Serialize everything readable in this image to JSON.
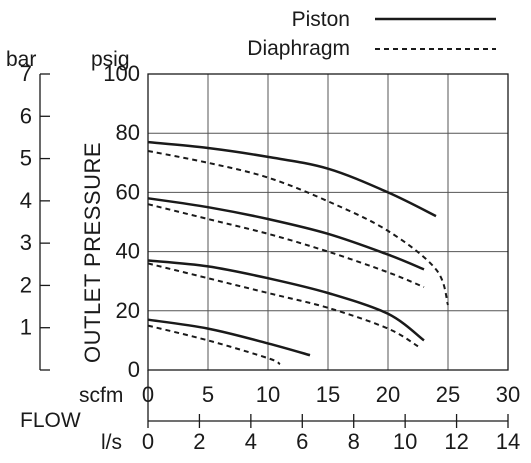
{
  "chart_data": {
    "type": "line",
    "title": "",
    "legend": {
      "placement": "top-right",
      "entries": [
        {
          "name": "Piston",
          "style": "solid"
        },
        {
          "name": "Diaphragm",
          "style": "dashed"
        }
      ]
    },
    "ylabel": "OUTLET PRESSURE",
    "xlabel": "FLOW",
    "grid": true,
    "y_axes": {
      "psig": {
        "unit": "psig",
        "range": [
          0,
          100
        ],
        "ticks": [
          "0",
          "20",
          "40",
          "60",
          "80",
          "100"
        ]
      },
      "bar": {
        "unit": "bar",
        "range": [
          0,
          7
        ],
        "ticks": [
          "1",
          "2",
          "3",
          "4",
          "5",
          "6",
          "7"
        ]
      }
    },
    "x_axes": {
      "scfm": {
        "unit": "scfm",
        "range": [
          0,
          30
        ],
        "ticks": [
          "0",
          "5",
          "10",
          "15",
          "20",
          "25",
          "30"
        ]
      },
      "ls": {
        "unit": "l/s",
        "range": [
          0,
          14
        ],
        "ticks": [
          "0",
          "2",
          "4",
          "6",
          "8",
          "10",
          "12",
          "14"
        ]
      }
    },
    "series": [
      {
        "name": "Piston",
        "style": "solid",
        "x": [
          0,
          5,
          10,
          15,
          20,
          24
        ],
        "y": [
          77,
          75,
          72,
          68,
          60,
          52
        ]
      },
      {
        "name": "Piston",
        "style": "solid",
        "x": [
          0,
          5,
          10,
          15,
          20,
          23
        ],
        "y": [
          58,
          55,
          51,
          46,
          39,
          34
        ]
      },
      {
        "name": "Piston",
        "style": "solid",
        "x": [
          0,
          5,
          10,
          15,
          20,
          23
        ],
        "y": [
          37,
          35,
          31,
          26,
          19,
          10
        ]
      },
      {
        "name": "Piston",
        "style": "solid",
        "x": [
          0,
          5,
          10,
          13.5
        ],
        "y": [
          17,
          14,
          9,
          5
        ]
      },
      {
        "name": "Diaphragm",
        "style": "dashed",
        "x": [
          0,
          5,
          10,
          15,
          20,
          24,
          25
        ],
        "y": [
          74,
          70,
          65,
          57,
          47,
          34,
          22
        ]
      },
      {
        "name": "Diaphragm",
        "style": "dashed",
        "x": [
          0,
          5,
          10,
          15,
          20,
          23
        ],
        "y": [
          56,
          51,
          46,
          40,
          33,
          28
        ]
      },
      {
        "name": "Diaphragm",
        "style": "dashed",
        "x": [
          0,
          5,
          10,
          15,
          20,
          22.5
        ],
        "y": [
          36,
          31,
          26,
          21,
          14,
          8
        ]
      },
      {
        "name": "Diaphragm",
        "style": "dashed",
        "x": [
          0,
          5,
          10,
          11
        ],
        "y": [
          15,
          10,
          4,
          2
        ]
      }
    ]
  }
}
